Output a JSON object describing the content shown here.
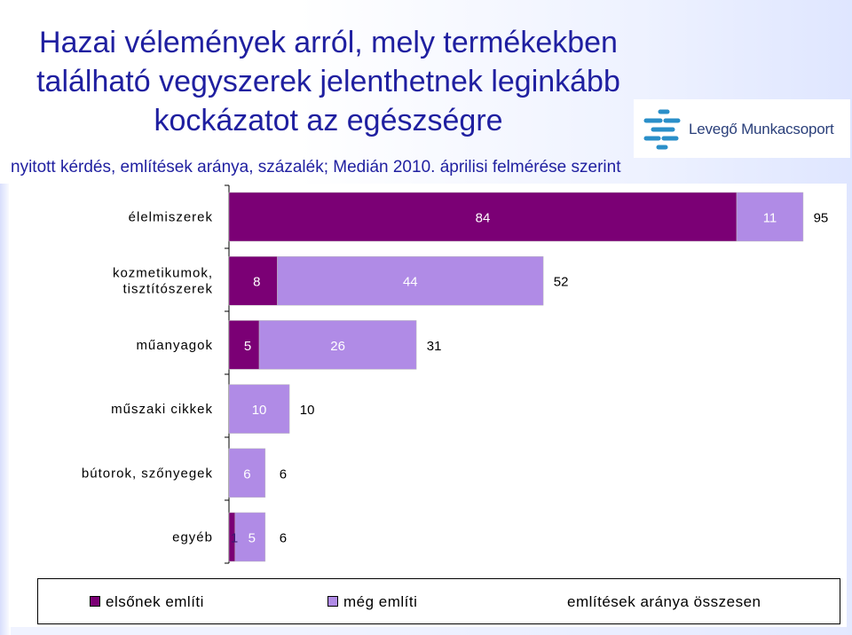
{
  "title": "Hazai vélemények arról, mely termékekben található vegyszerek jelenthetnek leginkább kockázatot az egészségre",
  "subtitle": "nyitott kérdés, említések aránya, százalék; Medián 2010. áprilisi felmérése szerint",
  "logo": {
    "text": "Levegő Munkacsoport"
  },
  "colors": {
    "first_mention": "#7b0075",
    "also_mentions": "#b08be6",
    "title": "#1f1fa0"
  },
  "chart_data": {
    "type": "bar",
    "orientation": "horizontal",
    "stacked": true,
    "categories": [
      "élelmiszerek",
      "kozmetikumok, tisztítószerek",
      "műanyagok",
      "műszaki cikkek",
      "bútorok, szőnyegek",
      "egyéb"
    ],
    "category_lines": [
      [
        "élelmiszerek"
      ],
      [
        "kozmetikumok,",
        "tisztítószerek"
      ],
      [
        "műanyagok"
      ],
      [
        "műszaki cikkek"
      ],
      [
        "bútorok, szőnyegek"
      ],
      [
        "egyéb"
      ]
    ],
    "series": [
      {
        "name": "elsőnek említi",
        "values": [
          84,
          8,
          5,
          0,
          0,
          1
        ]
      },
      {
        "name": "még említi",
        "values": [
          11,
          44,
          26,
          10,
          6,
          5
        ]
      }
    ],
    "totals": {
      "name": "említések aránya összesen",
      "values": [
        95,
        52,
        31,
        10,
        6,
        6
      ]
    },
    "first_labels": [
      "84",
      "8",
      "5",
      "",
      "",
      "1"
    ],
    "also_labels": [
      "11",
      "44",
      "26",
      "10",
      "6",
      "5"
    ],
    "total_labels": [
      "95",
      "52",
      "31",
      "10",
      "6",
      "6"
    ],
    "xlim": [
      0,
      100
    ],
    "grid": false,
    "legend_position": "bottom"
  }
}
